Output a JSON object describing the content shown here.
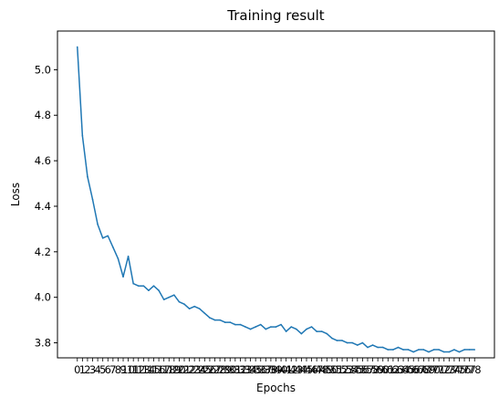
{
  "chart_data": {
    "type": "line",
    "title": "Training result",
    "xlabel": "Epochs",
    "ylabel": "Loss",
    "xlim": [
      -3.9,
      81.9
    ],
    "ylim": [
      3.734,
      5.17
    ],
    "yticks": [
      3.8,
      4.0,
      4.2,
      4.4,
      4.6,
      4.8,
      5.0
    ],
    "ytick_labels": [
      "3.8",
      "4.0",
      "4.2",
      "4.4",
      "4.6",
      "4.8",
      "5.0"
    ],
    "grid": false,
    "series": [
      {
        "color": "#1f77b4",
        "x": [
          0,
          1,
          2,
          3,
          4,
          5,
          6,
          7,
          8,
          9,
          10,
          11,
          12,
          13,
          14,
          15,
          16,
          17,
          18,
          19,
          20,
          21,
          22,
          23,
          24,
          25,
          26,
          27,
          28,
          29,
          30,
          31,
          32,
          33,
          34,
          35,
          36,
          37,
          38,
          39,
          40,
          41,
          42,
          43,
          44,
          45,
          46,
          47,
          48,
          49,
          50,
          51,
          52,
          53,
          54,
          55,
          56,
          57,
          58,
          59,
          60,
          61,
          62,
          63,
          64,
          65,
          66,
          67,
          68,
          69,
          70,
          71,
          72,
          73,
          74,
          75,
          76,
          77,
          78
        ],
        "values": [
          5.1,
          4.71,
          4.53,
          4.43,
          4.32,
          4.26,
          4.27,
          4.22,
          4.17,
          4.09,
          4.18,
          4.06,
          4.05,
          4.05,
          4.03,
          4.05,
          4.03,
          3.99,
          4.0,
          4.01,
          3.98,
          3.97,
          3.95,
          3.96,
          3.95,
          3.93,
          3.91,
          3.9,
          3.9,
          3.89,
          3.89,
          3.88,
          3.88,
          3.87,
          3.86,
          3.87,
          3.88,
          3.86,
          3.87,
          3.87,
          3.88,
          3.85,
          3.87,
          3.86,
          3.84,
          3.86,
          3.87,
          3.85,
          3.85,
          3.84,
          3.82,
          3.81,
          3.81,
          3.8,
          3.8,
          3.79,
          3.8,
          3.78,
          3.79,
          3.78,
          3.78,
          3.77,
          3.77,
          3.78,
          3.77,
          3.77,
          3.76,
          3.77,
          3.77,
          3.76,
          3.77,
          3.77,
          3.76,
          3.76,
          3.77,
          3.76,
          3.77,
          3.77,
          3.77
        ]
      }
    ],
    "x_categories": [
      "0",
      "1",
      "2",
      "3",
      "4",
      "5",
      "6",
      "7",
      "8",
      "9",
      "10",
      "11",
      "12",
      "13",
      "14",
      "15",
      "16",
      "17",
      "18",
      "19",
      "20",
      "21",
      "22",
      "23",
      "24",
      "25",
      "26",
      "27",
      "28",
      "29",
      "30",
      "31",
      "32",
      "33",
      "34",
      "35",
      "36",
      "37",
      "38",
      "39",
      "40",
      "41",
      "42",
      "43",
      "44",
      "45",
      "46",
      "47",
      "48",
      "49",
      "50",
      "51",
      "52",
      "53",
      "54",
      "55",
      "56",
      "57",
      "58",
      "59",
      "60",
      "61",
      "62",
      "63",
      "64",
      "65",
      "66",
      "67",
      "68",
      "69",
      "70",
      "71",
      "72",
      "73",
      "74",
      "75",
      "76",
      "77",
      "78"
    ]
  }
}
